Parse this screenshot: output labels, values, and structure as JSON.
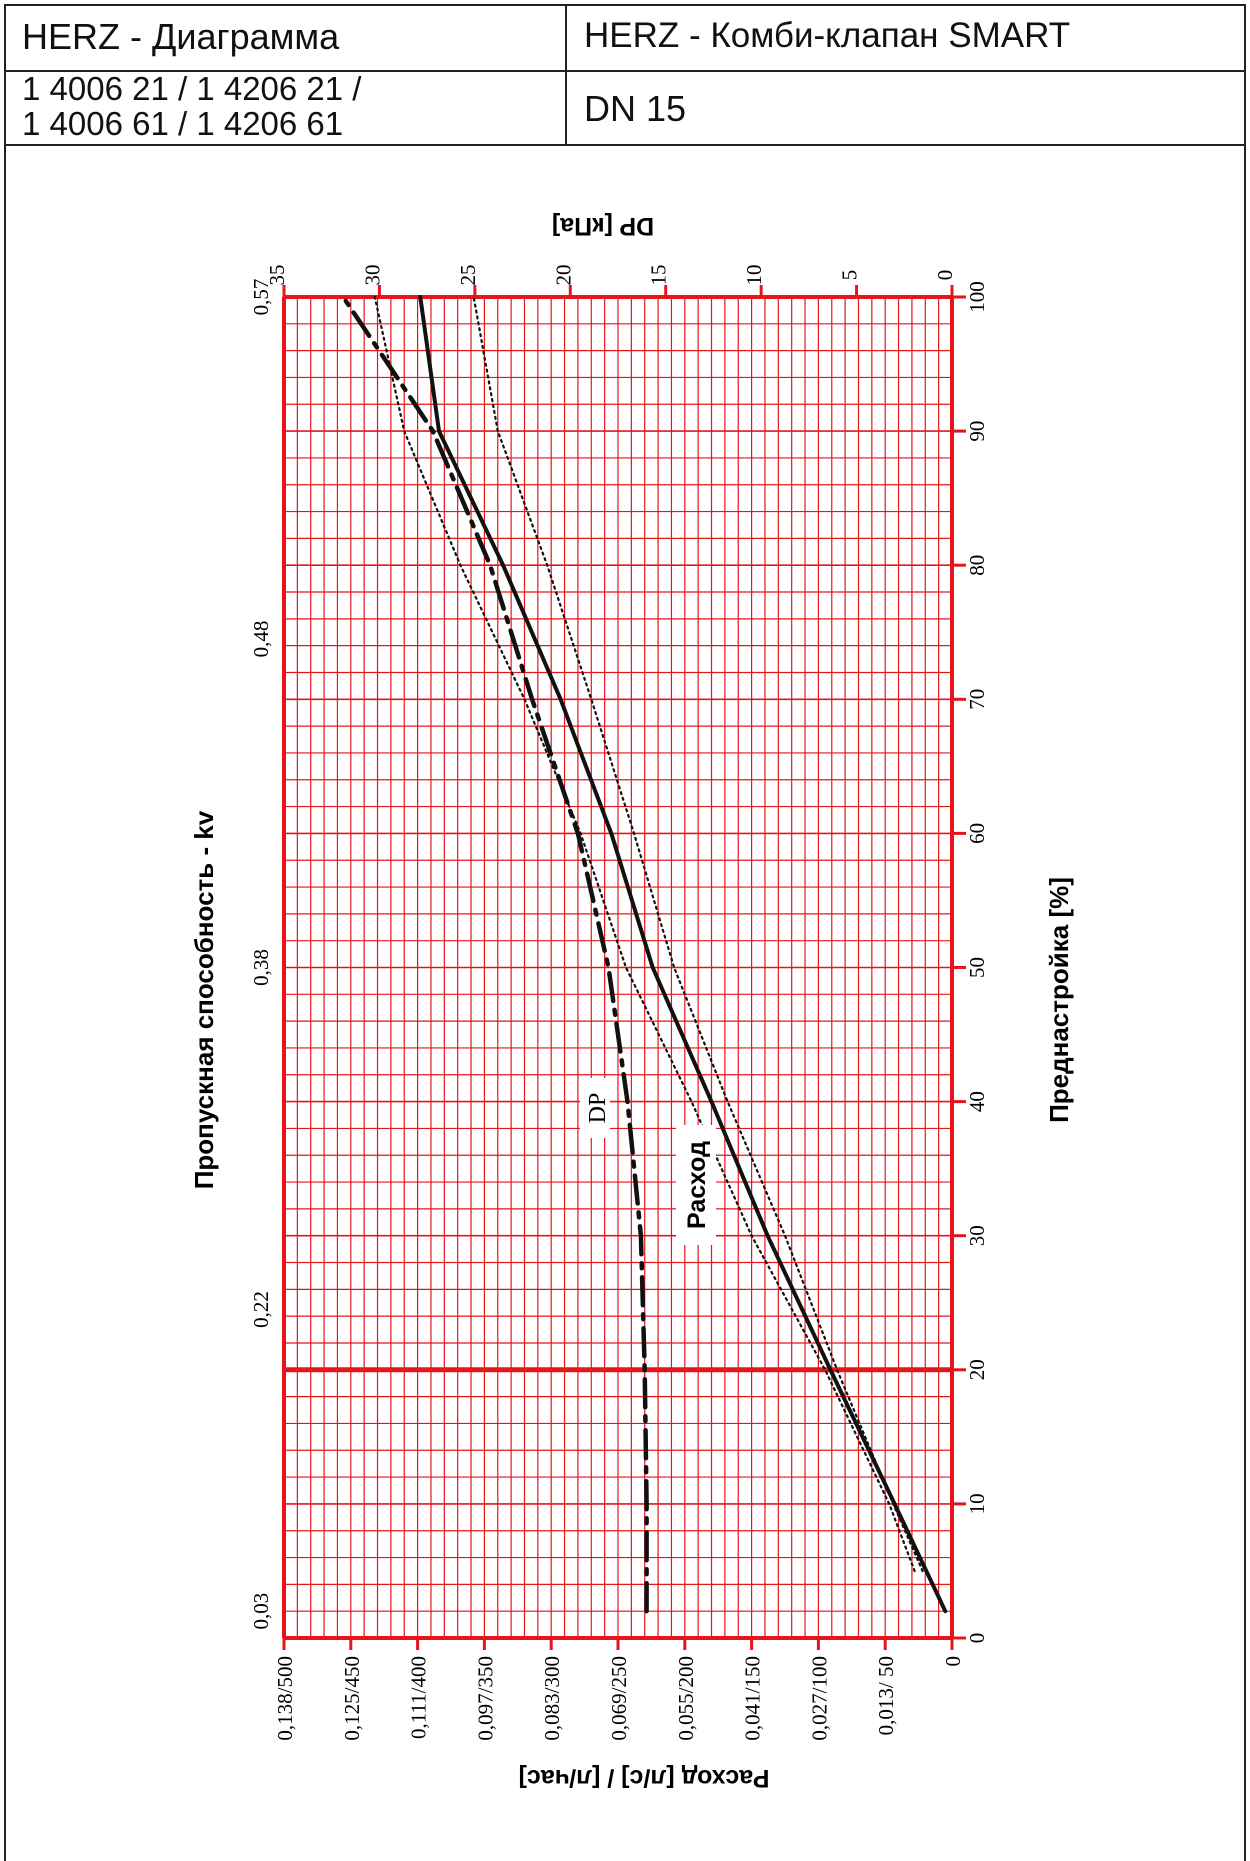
{
  "header": {
    "title_left": "HERZ - Диаграмма",
    "title_right": "HERZ - Комби-клапан SMART",
    "codes_line1": "1 4006 21 / 1 4206 21 /",
    "codes_line2": "1 4006 61 / 1 4206 61",
    "dn": "DN 15"
  },
  "colors": {
    "grid": "#e8141c",
    "curve": "#111111",
    "frame": "#222222"
  },
  "chart_data": {
    "type": "line",
    "orientation": "rotated 90° counter-clockwise (presetting on the right edge)",
    "title": "",
    "axes": {
      "presetting": {
        "label": "Преднастройка [%]",
        "range": [
          0,
          100
        ],
        "ticks": [
          "0",
          "10",
          "20",
          "30",
          "40",
          "50",
          "60",
          "70",
          "80",
          "90",
          "100"
        ]
      },
      "dp": {
        "label": "DP [кПа]",
        "range": [
          0,
          35
        ],
        "ticks": [
          "0",
          "5",
          "10",
          "15",
          "20",
          "25",
          "30",
          "35"
        ]
      },
      "flow": {
        "label": "Расход [л/с] /  [л/час]",
        "range": [
          0,
          500
        ],
        "ticks": [
          "0",
          "0,013/  50",
          "0,027/100",
          "0,041/150",
          "0,055/200",
          "0,069/250",
          "0,083/300",
          "0,097/350",
          "0,111/400",
          "0,125/450",
          "0,138/500"
        ]
      },
      "kv": {
        "label": "Пропускная способность - kv",
        "ticks": [
          "0,03",
          "0,22",
          "0,38",
          "0,48",
          "0,57"
        ]
      }
    },
    "grid": true,
    "marker_line_presetting": 20,
    "series": [
      {
        "name": "DP",
        "style": "dash-dot",
        "unit": "DP [кПа]",
        "x": [
          2,
          10,
          20,
          30,
          40,
          50,
          55,
          60,
          70,
          80,
          90,
          100
        ],
        "y": [
          16.0,
          16.0,
          16.1,
          16.3,
          17.0,
          18.0,
          18.8,
          19.6,
          22.0,
          24.2,
          27.2,
          31.9
        ]
      },
      {
        "name": "Расход",
        "style": "solid",
        "unit": "л/час",
        "x": [
          2,
          10,
          20,
          30,
          40,
          50,
          60,
          70,
          80,
          90,
          100
        ],
        "y": [
          5,
          43,
          91,
          138,
          180,
          224,
          255,
          293,
          336,
          384,
          398
        ]
      },
      {
        "name": "",
        "style": "dotted",
        "unit": "л/час",
        "x": [
          5,
          10,
          20,
          30,
          40,
          50,
          60,
          70,
          80,
          90,
          100
        ],
        "y": [
          22,
          44,
          86,
          125,
          168,
          208,
          238,
          270,
          303,
          340,
          358
        ]
      },
      {
        "name": "",
        "style": "dotted",
        "unit": "л/час",
        "x": [
          5,
          10,
          20,
          30,
          40,
          50,
          60,
          70,
          80,
          90,
          100
        ],
        "y": [
          28,
          47,
          95,
          150,
          195,
          244,
          278,
          320,
          368,
          410,
          432
        ]
      }
    ]
  }
}
